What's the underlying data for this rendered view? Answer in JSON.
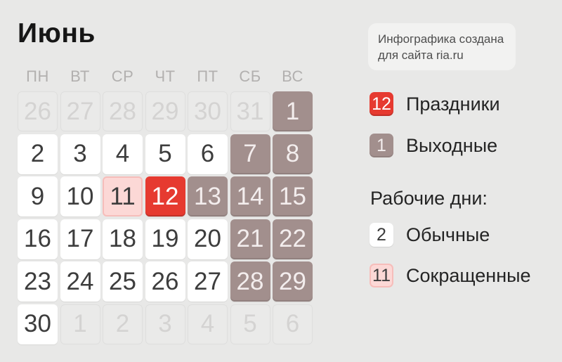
{
  "title": "Июнь",
  "tooltip": {
    "line1": "Инфографика создана",
    "line2": "для сайта ria.ru"
  },
  "calendar": {
    "weekdays": [
      "ПН",
      "ВТ",
      "СР",
      "ЧТ",
      "ПТ",
      "СБ",
      "ВС"
    ],
    "cells": [
      {
        "day": "26",
        "type": "out"
      },
      {
        "day": "27",
        "type": "out"
      },
      {
        "day": "28",
        "type": "out"
      },
      {
        "day": "29",
        "type": "out"
      },
      {
        "day": "30",
        "type": "out"
      },
      {
        "day": "31",
        "type": "out"
      },
      {
        "day": "1",
        "type": "weekend"
      },
      {
        "day": "2",
        "type": "work"
      },
      {
        "day": "3",
        "type": "work"
      },
      {
        "day": "4",
        "type": "work"
      },
      {
        "day": "5",
        "type": "work"
      },
      {
        "day": "6",
        "type": "work"
      },
      {
        "day": "7",
        "type": "weekend"
      },
      {
        "day": "8",
        "type": "weekend"
      },
      {
        "day": "9",
        "type": "work"
      },
      {
        "day": "10",
        "type": "work"
      },
      {
        "day": "11",
        "type": "short"
      },
      {
        "day": "12",
        "type": "holiday"
      },
      {
        "day": "13",
        "type": "weekend"
      },
      {
        "day": "14",
        "type": "weekend"
      },
      {
        "day": "15",
        "type": "weekend"
      },
      {
        "day": "16",
        "type": "work"
      },
      {
        "day": "17",
        "type": "work"
      },
      {
        "day": "18",
        "type": "work"
      },
      {
        "day": "19",
        "type": "work"
      },
      {
        "day": "20",
        "type": "work"
      },
      {
        "day": "21",
        "type": "weekend"
      },
      {
        "day": "22",
        "type": "weekend"
      },
      {
        "day": "23",
        "type": "work"
      },
      {
        "day": "24",
        "type": "work"
      },
      {
        "day": "25",
        "type": "work"
      },
      {
        "day": "26",
        "type": "work"
      },
      {
        "day": "27",
        "type": "work"
      },
      {
        "day": "28",
        "type": "weekend"
      },
      {
        "day": "29",
        "type": "weekend"
      },
      {
        "day": "30",
        "type": "work"
      },
      {
        "day": "1",
        "type": "out"
      },
      {
        "day": "2",
        "type": "out"
      },
      {
        "day": "3",
        "type": "out"
      },
      {
        "day": "4",
        "type": "out"
      },
      {
        "day": "5",
        "type": "out"
      },
      {
        "day": "6",
        "type": "out"
      }
    ]
  },
  "legend": {
    "holidays": {
      "value": "12",
      "label": "Праздники"
    },
    "weekends": {
      "value": "1",
      "label": "Выходные"
    },
    "working_days_heading": "Рабочие дни:",
    "regular": {
      "value": "2",
      "label": "Обычные"
    },
    "shortened": {
      "value": "11",
      "label": "Сокращенные"
    }
  },
  "colors": {
    "bg": "#e8e8e7",
    "title_text": "#161616",
    "weekday_text": "#b2b0af",
    "day_text": "#3d3d3d",
    "work_bg": "#ffffff",
    "out_bg": "#eaeae9",
    "out_border": "#dededd",
    "out_text": "#d4d3d2",
    "weekend_bg": "#a28f8d",
    "weekend_text": "#f3eded",
    "holiday_bg": "#e63a30",
    "short_bg": "#fcd8d6",
    "short_border": "#f6bdba",
    "tooltip_bg": "#f2f2f1",
    "tooltip_text": "#4e4e4e",
    "legend_text": "#242424"
  }
}
